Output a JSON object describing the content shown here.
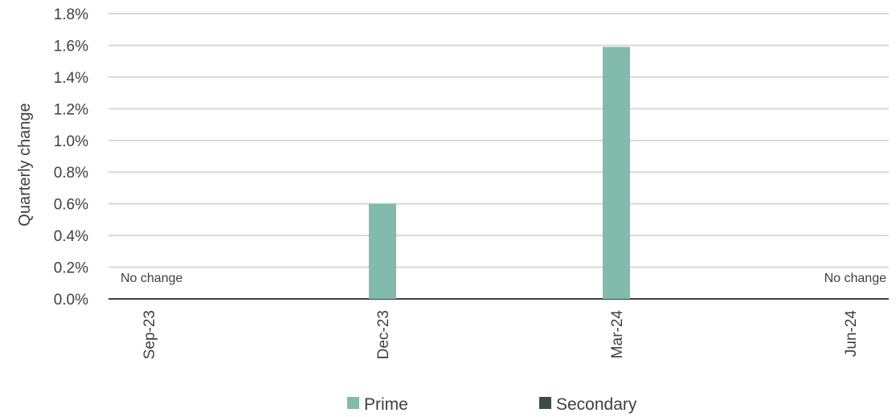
{
  "chart_data": {
    "type": "bar",
    "categories": [
      "Sep-23",
      "Dec-23",
      "Mar-24",
      "Jun-24"
    ],
    "series": [
      {
        "name": "Prime",
        "values": [
          0.0,
          0.6,
          1.59,
          0.0
        ],
        "color": "#82BAAB"
      },
      {
        "name": "Secondary",
        "values": [
          0.0,
          0.0,
          0.0,
          0.0
        ],
        "color": "#3F4A4D"
      }
    ],
    "ylabel": "Quarterly change",
    "ylim": [
      0,
      1.8
    ],
    "yticks": [
      0.0,
      0.2,
      0.4,
      0.6,
      0.8,
      1.0,
      1.2,
      1.4,
      1.6,
      1.8
    ],
    "ytick_labels": [
      "0.0%",
      "0.2%",
      "0.4%",
      "0.6%",
      "0.8%",
      "1.0%",
      "1.2%",
      "1.4%",
      "1.6%",
      "1.8%"
    ],
    "annotations": [
      {
        "text": "No change",
        "category": "Sep-23"
      },
      {
        "text": "No change",
        "category": "Jun-24"
      }
    ],
    "grid": true,
    "legend": "bottom",
    "gridline_color": "#D9D9D9",
    "axis_color": "#404040"
  }
}
